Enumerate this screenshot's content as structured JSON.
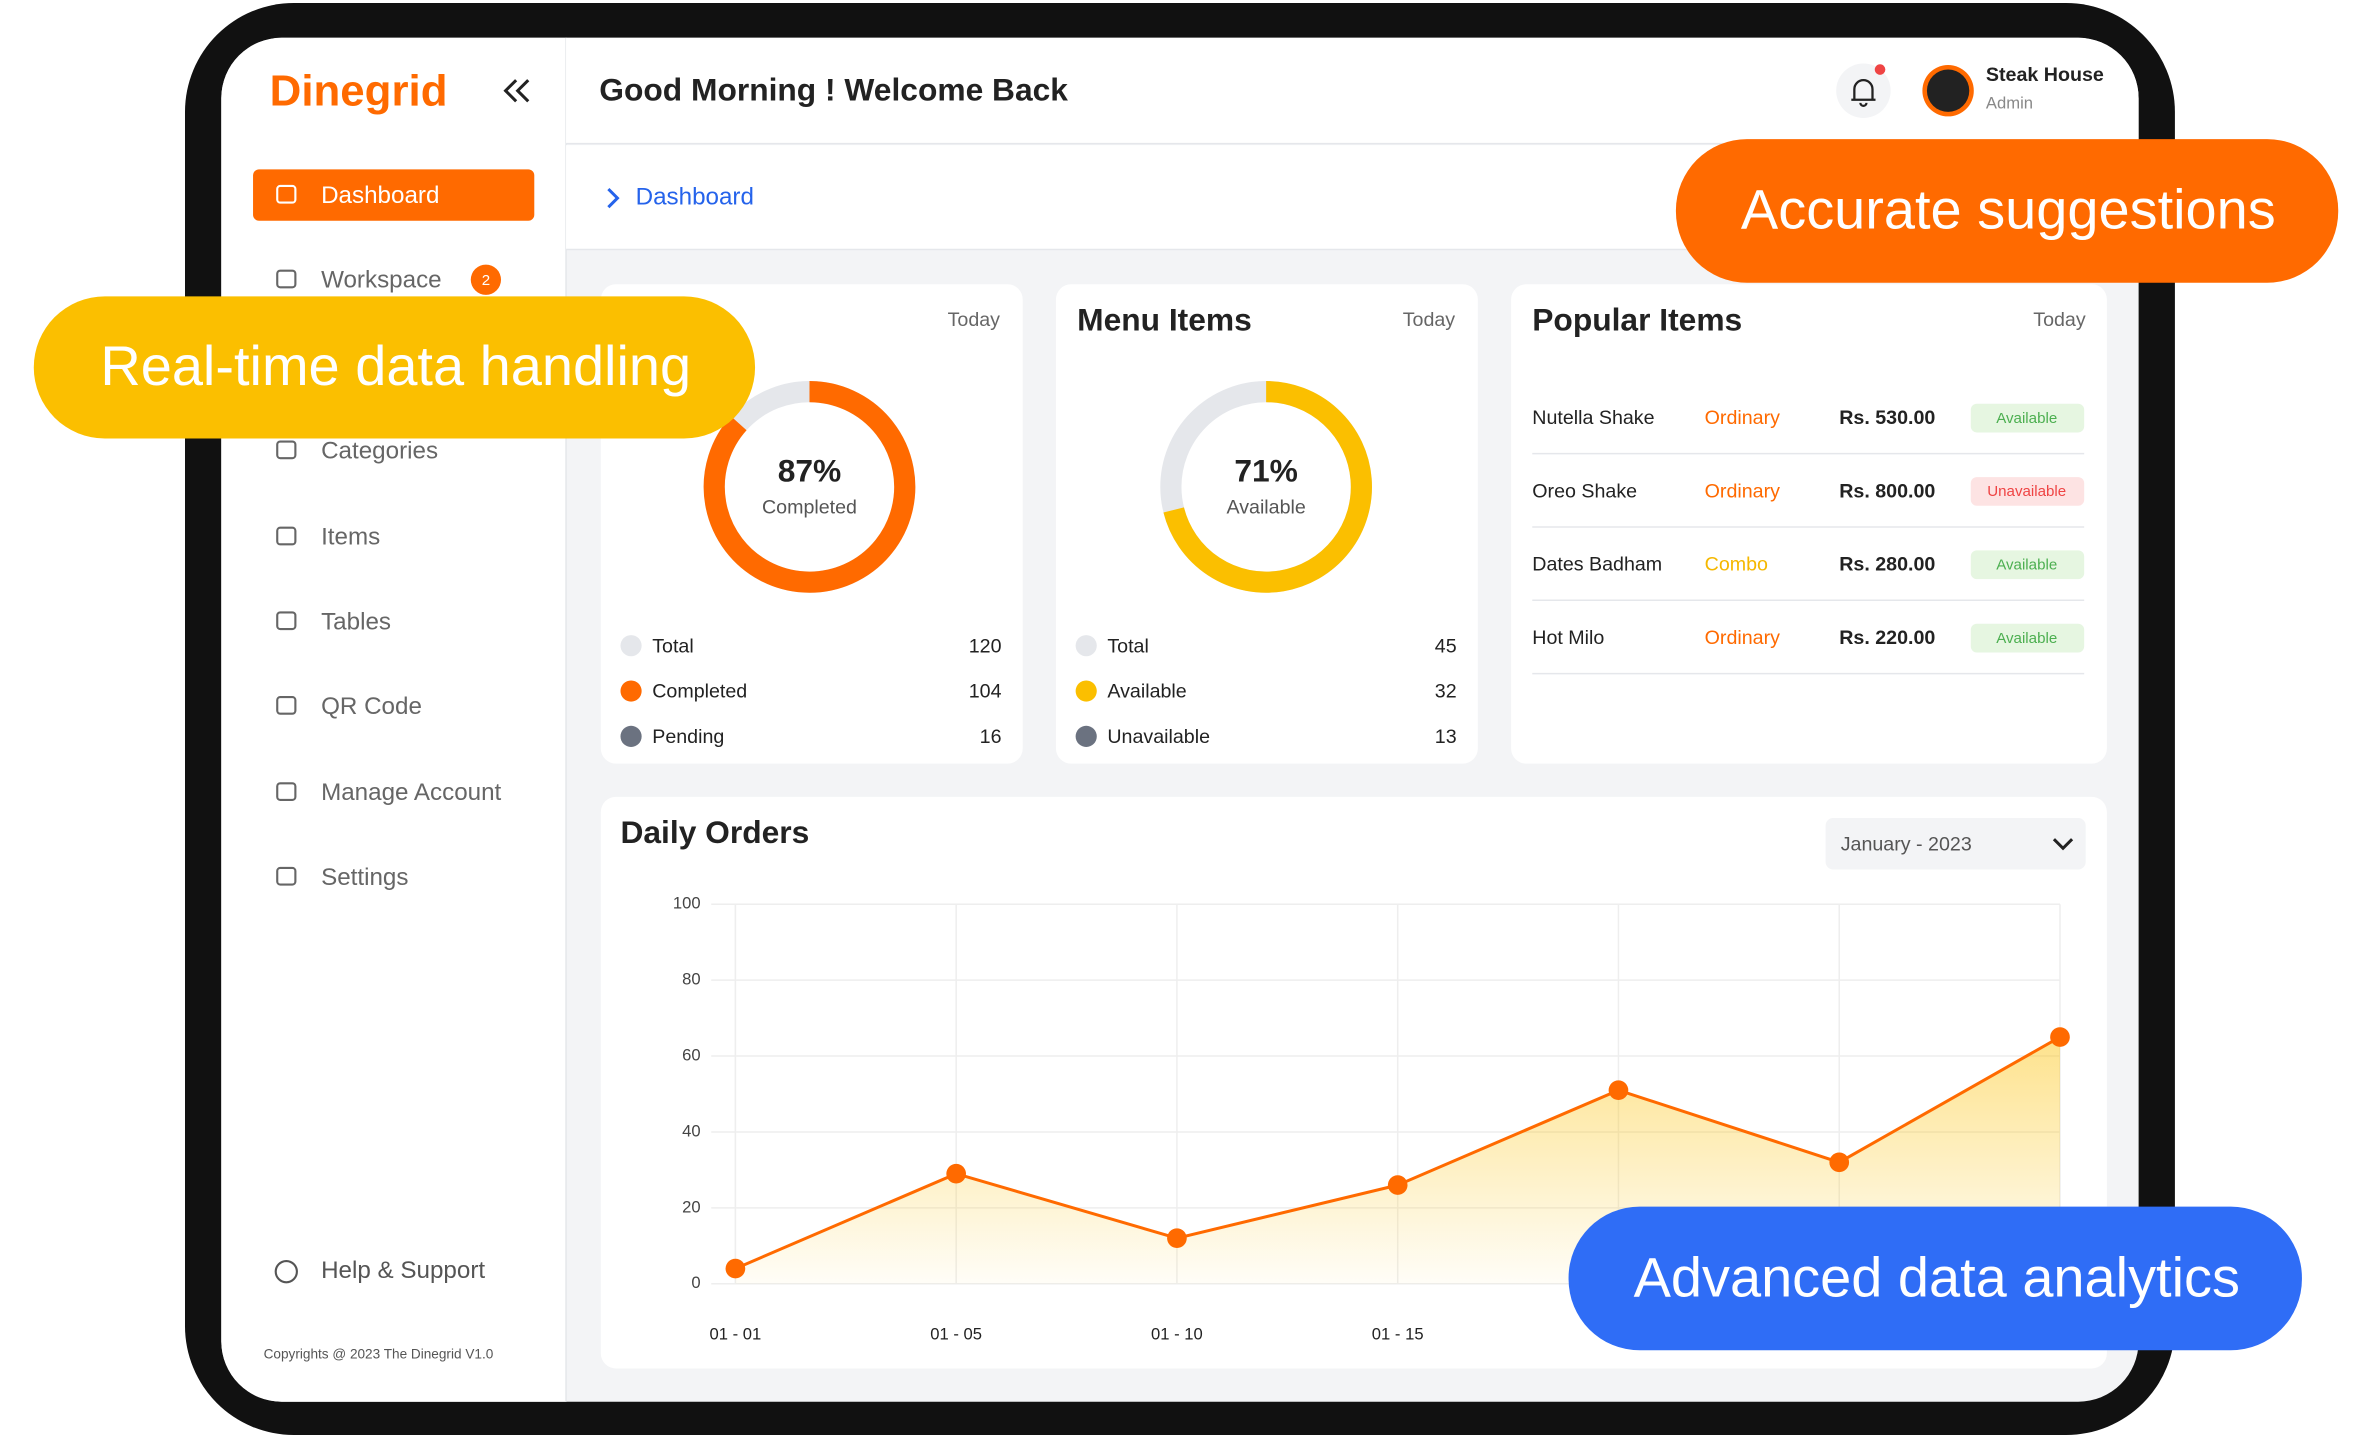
{
  "brand": "Dinegrid",
  "header": {
    "greeting": "Good Morning ! Welcome Back",
    "user_name": "Steak House",
    "user_role": "Admin"
  },
  "sidebar": {
    "menu": [
      {
        "label": "Dashboard"
      },
      {
        "label": "Workspace",
        "badge": 2
      },
      {
        "label": "Categories"
      },
      {
        "label": "Items"
      },
      {
        "label": "Tables"
      },
      {
        "label": "QR Code"
      },
      {
        "label": "Manage Account"
      },
      {
        "label": "Settings"
      }
    ],
    "active": 0,
    "help": "Help & Support",
    "copyright": "Copyrights @ 2023 The Dinegrid V1.0"
  },
  "breadcrumb": "Dashboard",
  "callouts": {
    "realtime": "Real-time data handling",
    "suggestions": "Accurate suggestions",
    "analytics": "Advanced data analytics"
  },
  "orders": {
    "period": "Today",
    "center_value": "87%",
    "center_caption": "Completed",
    "legend": [
      {
        "label": "Total",
        "value": 120,
        "color": "#e5e7eb"
      },
      {
        "label": "Completed",
        "value": 104,
        "color": "#ff6a00"
      },
      {
        "label": "Pending",
        "value": 16,
        "color": "#6b7280"
      }
    ]
  },
  "menu_items": {
    "title": "Menu Items",
    "period": "Today",
    "center_value": "71%",
    "center_caption": "Available",
    "legend": [
      {
        "label": "Total",
        "value": 45,
        "color": "#e5e7eb"
      },
      {
        "label": "Available",
        "value": 32,
        "color": "#fbbf00"
      },
      {
        "label": "Unavailable",
        "value": 13,
        "color": "#6b7280"
      }
    ]
  },
  "popular": {
    "title": "Popular Items",
    "period": "Today",
    "rows": [
      {
        "name": "Nutella Shake",
        "type": "Ordinary",
        "type_color": "#ff6a00",
        "price": "Rs. 530.00",
        "status": "Available",
        "status_color": "#4caf50",
        "status_bg": "#e6f6e1"
      },
      {
        "name": "Oreo Shake",
        "type": "Ordinary",
        "type_color": "#ff6a00",
        "price": "Rs. 800.00",
        "status": "Unavailable",
        "status_color": "#ef4444",
        "status_bg": "#fde3e3"
      },
      {
        "name": "Dates Badham",
        "type": "Combo",
        "type_color": "#f5b800",
        "price": "Rs. 280.00",
        "status": "Available",
        "status_color": "#4caf50",
        "status_bg": "#e6f6e1"
      },
      {
        "name": "Hot Milo",
        "type": "Ordinary",
        "type_color": "#ff6a00",
        "price": "Rs. 220.00",
        "status": "Available",
        "status_color": "#4caf50",
        "status_bg": "#e6f6e1"
      }
    ]
  },
  "daily_orders": {
    "type": "line",
    "title": "Daily Orders",
    "period": "January - 2023",
    "categories": [
      "01 - 01",
      "01 - 05",
      "01 - 10",
      "01 - 15",
      null,
      null,
      null
    ],
    "values": [
      4,
      29,
      12,
      26,
      51,
      32,
      65
    ],
    "color": "#ff6a00",
    "ylim": [
      0,
      100
    ],
    "yticks": [
      0,
      20,
      40,
      60,
      80,
      100
    ],
    "grid": true
  }
}
